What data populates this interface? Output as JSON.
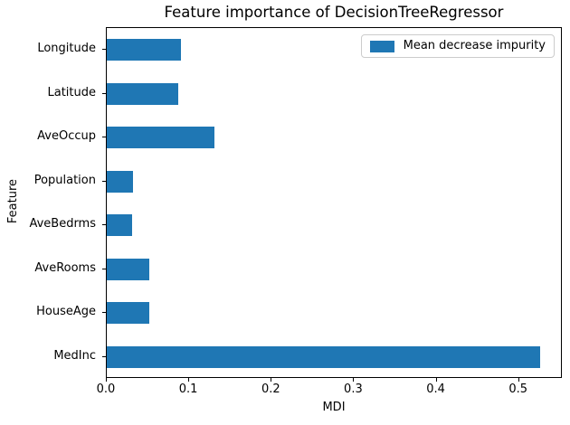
{
  "colors": {
    "bar": "#1f77b4",
    "axis": "#000000",
    "legend_border": "#cccccc",
    "background": "#ffffff"
  },
  "chart_data": {
    "type": "bar",
    "orientation": "horizontal",
    "title": "Feature importance of DecisionTreeRegressor",
    "xlabel": "MDI",
    "ylabel": "Feature",
    "categories": [
      "Longitude",
      "Latitude",
      "AveOccup",
      "Population",
      "AveBedrms",
      "AveRooms",
      "HouseAge",
      "MedInc"
    ],
    "values": [
      0.09,
      0.087,
      0.13,
      0.032,
      0.031,
      0.051,
      0.052,
      0.526
    ],
    "xticks": [
      0.0,
      0.1,
      0.2,
      0.3,
      0.4,
      0.5
    ],
    "xtick_labels": [
      "0.0",
      "0.1",
      "0.2",
      "0.3",
      "0.4",
      "0.5"
    ],
    "xlim": [
      0,
      0.553
    ],
    "grid": false,
    "bar_color": "#1f77b4",
    "legend_label": "Mean decrease impurity",
    "legend_position": "upper right"
  }
}
